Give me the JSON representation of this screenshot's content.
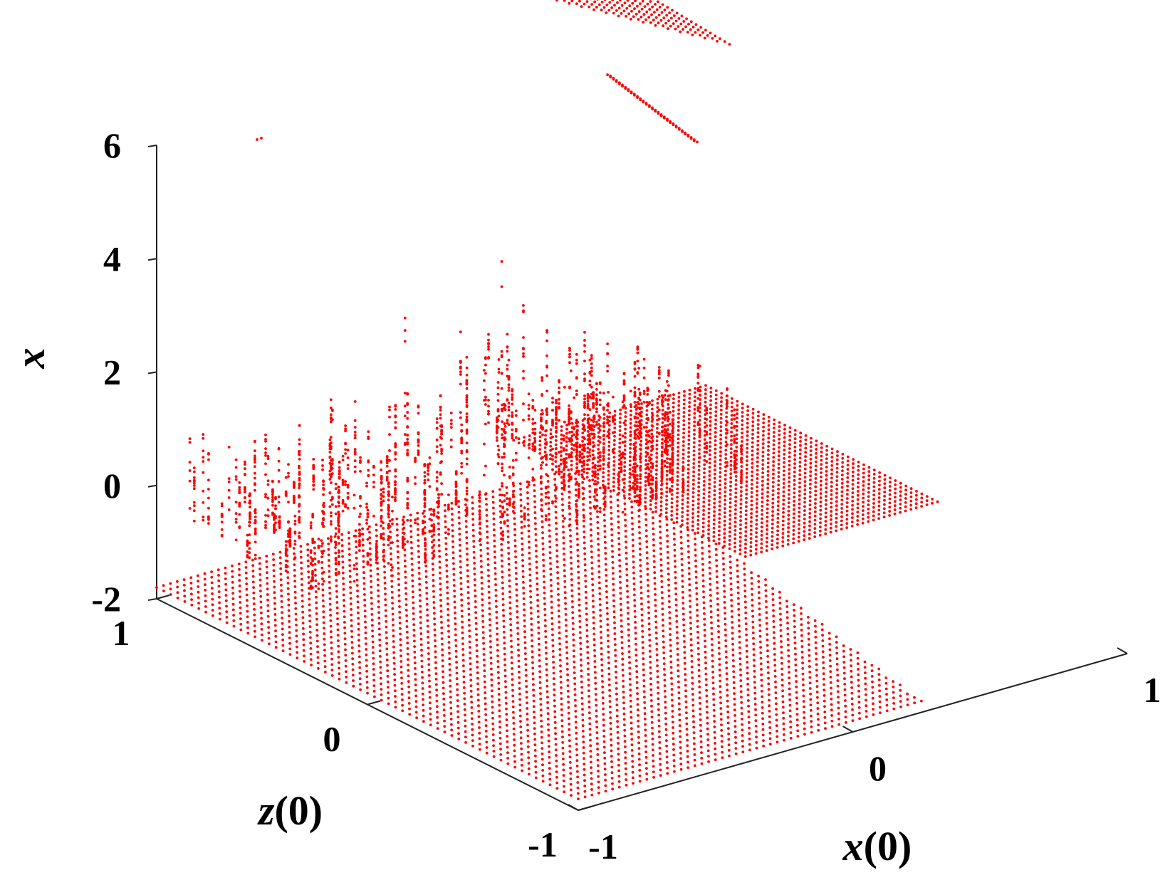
{
  "chart_data": {
    "type": "scatter",
    "subtype": "3d-scatter",
    "title": "",
    "marker_color": "#ff0000",
    "grid": false,
    "x_axis": {
      "label_var": "x",
      "label_arg": "(0)",
      "range": [
        -1,
        1
      ],
      "ticks": [
        -1,
        0,
        1
      ],
      "tick_labels": [
        "-1",
        "0",
        "1"
      ]
    },
    "z_axis": {
      "label_var": "z",
      "label_arg": "(0)",
      "range": [
        -1,
        1
      ],
      "ticks": [
        -1,
        0,
        1
      ],
      "tick_labels": [
        "-1",
        "0",
        "1"
      ]
    },
    "vertical_axis": {
      "label": "x",
      "range": [
        -2,
        6
      ],
      "ticks": [
        -2,
        0,
        2,
        4,
        6
      ],
      "tick_labels": [
        "-2",
        "0",
        "2",
        "4",
        "6"
      ]
    },
    "series": [
      {
        "description": "lower basin grid at value -1.8",
        "value": -1.8,
        "x0_range": [
          -1,
          0.5
        ],
        "z0_range": [
          -1,
          1
        ]
      },
      {
        "description": "upper right plateau grid at value -1.0",
        "value": -1.0,
        "x0_range": [
          0.3,
          1
        ],
        "z0_range": [
          -0.1,
          1
        ]
      },
      {
        "description": "scattered excursions between -1 and 3.5",
        "value_range": [
          -1.0,
          3.5
        ]
      },
      {
        "description": "outlier triangle near value 7",
        "value": 7.0
      },
      {
        "description": "outlier strip near value 4",
        "value": 4.0
      }
    ]
  }
}
